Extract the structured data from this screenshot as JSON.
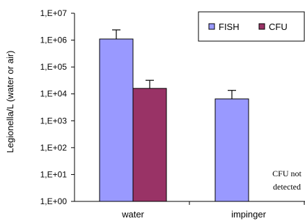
{
  "chart_data": {
    "type": "bar",
    "y_scale": "log",
    "ylim": [
      1,
      10000000
    ],
    "ylabel": "Legionella/L (water or air)",
    "xlabel": "",
    "title": "",
    "yticks": [
      1,
      10,
      100,
      1000,
      10000,
      100000,
      1000000,
      10000000
    ],
    "ytick_labels": [
      "1,E+00",
      "1,E+01",
      "1,E+02",
      "1,E+03",
      "1,E+04",
      "1,E+05",
      "1,E+06",
      "1,E+07"
    ],
    "categories": [
      "water",
      "impinger"
    ],
    "series": [
      {
        "name": "FISH",
        "color": "#9999ff",
        "values": [
          1100000,
          6500
        ],
        "error_plus": [
          1300000,
          7000
        ]
      },
      {
        "name": "CFU",
        "color": "#993366",
        "values": [
          16000,
          null
        ],
        "error_plus": [
          16000,
          null
        ]
      }
    ],
    "annotation": {
      "line1": "CFU not",
      "line2": "detected"
    },
    "legend_position": "top-right",
    "grid": false
  }
}
